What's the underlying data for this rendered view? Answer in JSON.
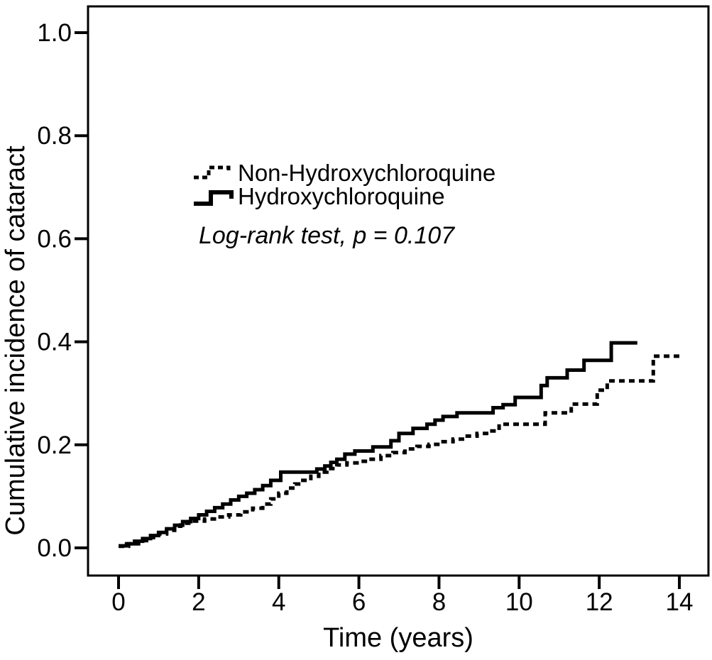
{
  "figure": {
    "background_color": "#ffffff",
    "line_color": "#000000"
  },
  "chart_data": {
    "type": "line",
    "subtype": "step-cumulative-incidence",
    "title": "",
    "xlabel": "Time (years)",
    "ylabel": "Cumulative incidence of cataract",
    "annotation": "Log-rank test, p = 0.107",
    "xlim": [
      0,
      14
    ],
    "ylim": [
      0.0,
      1.0
    ],
    "xticks": [
      0,
      2,
      4,
      6,
      8,
      10,
      12,
      14
    ],
    "yticks": [
      "0.0",
      "0.2",
      "0.4",
      "0.6",
      "0.8",
      "1.0"
    ],
    "grid": false,
    "legend_position": "upper-left-inside",
    "legend": [
      {
        "label": "Non-Hydroxychloroquine",
        "style": "dotted"
      },
      {
        "label": "Hydroxychloroquine",
        "style": "solid"
      }
    ],
    "series": [
      {
        "name": "Non-Hydroxychloroquine",
        "style": "dotted",
        "points": [
          [
            0,
            0.003
          ],
          [
            0.25,
            0.008
          ],
          [
            0.5,
            0.014
          ],
          [
            0.75,
            0.02
          ],
          [
            1.0,
            0.027
          ],
          [
            1.2,
            0.034
          ],
          [
            1.4,
            0.042
          ],
          [
            1.55,
            0.048
          ],
          [
            1.85,
            0.052
          ],
          [
            2.15,
            0.056
          ],
          [
            2.45,
            0.06
          ],
          [
            2.75,
            0.064
          ],
          [
            3.05,
            0.07
          ],
          [
            3.35,
            0.077
          ],
          [
            3.6,
            0.085
          ],
          [
            3.8,
            0.095
          ],
          [
            4.0,
            0.106
          ],
          [
            4.2,
            0.116
          ],
          [
            4.4,
            0.124
          ],
          [
            4.6,
            0.131
          ],
          [
            4.8,
            0.139
          ],
          [
            5.0,
            0.147
          ],
          [
            5.2,
            0.154
          ],
          [
            5.45,
            0.161
          ],
          [
            5.7,
            0.165
          ],
          [
            6.0,
            0.168
          ],
          [
            6.25,
            0.172
          ],
          [
            6.55,
            0.179
          ],
          [
            6.85,
            0.185
          ],
          [
            7.15,
            0.192
          ],
          [
            7.45,
            0.197
          ],
          [
            7.75,
            0.201
          ],
          [
            8.05,
            0.206
          ],
          [
            8.35,
            0.211
          ],
          [
            8.65,
            0.217
          ],
          [
            8.95,
            0.222
          ],
          [
            9.25,
            0.227
          ],
          [
            9.5,
            0.24
          ],
          [
            10.65,
            0.262
          ],
          [
            11.3,
            0.279
          ],
          [
            11.95,
            0.306
          ],
          [
            12.2,
            0.324
          ],
          [
            13.35,
            0.372
          ],
          [
            14.0,
            0.372
          ]
        ]
      },
      {
        "name": "Hydroxychloroquine",
        "style": "solid",
        "points": [
          [
            0,
            0.004
          ],
          [
            0.2,
            0.008
          ],
          [
            0.4,
            0.013
          ],
          [
            0.6,
            0.018
          ],
          [
            0.8,
            0.024
          ],
          [
            1.0,
            0.03
          ],
          [
            1.2,
            0.037
          ],
          [
            1.4,
            0.044
          ],
          [
            1.6,
            0.051
          ],
          [
            1.8,
            0.057
          ],
          [
            2.0,
            0.064
          ],
          [
            2.2,
            0.071
          ],
          [
            2.4,
            0.078
          ],
          [
            2.6,
            0.085
          ],
          [
            2.8,
            0.093
          ],
          [
            3.0,
            0.1
          ],
          [
            3.2,
            0.106
          ],
          [
            3.4,
            0.113
          ],
          [
            3.6,
            0.121
          ],
          [
            3.8,
            0.131
          ],
          [
            4.05,
            0.147
          ],
          [
            4.95,
            0.153
          ],
          [
            5.15,
            0.159
          ],
          [
            5.3,
            0.166
          ],
          [
            5.45,
            0.172
          ],
          [
            5.65,
            0.182
          ],
          [
            5.9,
            0.188
          ],
          [
            6.35,
            0.196
          ],
          [
            6.8,
            0.208
          ],
          [
            7.0,
            0.222
          ],
          [
            7.35,
            0.232
          ],
          [
            7.7,
            0.24
          ],
          [
            7.9,
            0.248
          ],
          [
            8.1,
            0.255
          ],
          [
            8.45,
            0.262
          ],
          [
            9.35,
            0.272
          ],
          [
            9.6,
            0.278
          ],
          [
            9.9,
            0.292
          ],
          [
            10.55,
            0.315
          ],
          [
            10.7,
            0.33
          ],
          [
            11.2,
            0.345
          ],
          [
            11.62,
            0.364
          ],
          [
            12.3,
            0.398
          ],
          [
            12.95,
            0.398
          ]
        ]
      }
    ]
  }
}
